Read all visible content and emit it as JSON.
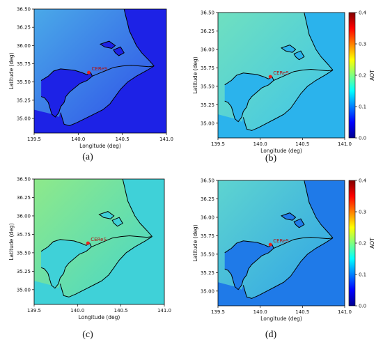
{
  "chart_data": [
    {
      "type": "heatmap",
      "panel": "(a)",
      "xlabel": "Longitude (deg)",
      "ylabel": "Latitude (deg)",
      "xlim": [
        139.5,
        141.0
      ],
      "ylim": [
        34.8,
        36.5
      ],
      "xticks": [
        "139.5",
        "140.0",
        "140.5",
        "141.0"
      ],
      "yticks": [
        "35.00",
        "35.25",
        "35.50",
        "35.75",
        "36.00",
        "36.25",
        "36.50"
      ],
      "annotation": "CEReS",
      "site": {
        "lon": 140.12,
        "lat": 35.63
      },
      "colorbar": false,
      "palette": {
        "sea": "#1d22e6",
        "land_low": "#2e4fe8",
        "land_high": "#4aa9e8"
      },
      "background_aot": 0.02
    },
    {
      "type": "heatmap",
      "panel": "(b)",
      "xlabel": "Longitude (deg)",
      "ylabel": "Latitude (deg)",
      "xlim": [
        139.5,
        141.0
      ],
      "ylim": [
        34.8,
        36.5
      ],
      "xticks": [
        "139.5",
        "140.0",
        "140.5",
        "141.0"
      ],
      "yticks": [
        "35.00",
        "35.25",
        "35.50",
        "35.75",
        "36.00",
        "36.25",
        "36.50"
      ],
      "annotation": "CEReS",
      "site": {
        "lon": 140.12,
        "lat": 35.63
      },
      "colorbar": true,
      "colorbar_label": "AOT",
      "colorbar_range": [
        0.0,
        0.4
      ],
      "colorbar_ticks": [
        "0.0",
        "0.1",
        "0.2",
        "0.3",
        "0.4"
      ],
      "palette": {
        "sea": "#2bb3ec",
        "land_low": "#3fc4e8",
        "land_high": "#6fe0c0"
      },
      "background_aot": 0.14
    },
    {
      "type": "heatmap",
      "panel": "(c)",
      "xlabel": "Longitude (deg)",
      "ylabel": "Latitude (deg)",
      "xlim": [
        139.5,
        141.0
      ],
      "ylim": [
        34.8,
        36.5
      ],
      "xticks": [
        "139.5",
        "140.0",
        "140.5",
        "141.0"
      ],
      "yticks": [
        "35.00",
        "35.25",
        "35.50",
        "35.75",
        "36.00",
        "36.25",
        "36.50"
      ],
      "annotation": "CEReS",
      "site": {
        "lon": 140.12,
        "lat": 35.63
      },
      "colorbar": false,
      "palette": {
        "sea": "#3fd1d8",
        "land_low": "#46d6c8",
        "land_high": "#8ee98a"
      },
      "background_aot": 0.17
    },
    {
      "type": "heatmap",
      "panel": "(d)",
      "xlabel": "Longitude (deg)",
      "ylabel": "Latitude (deg)",
      "xlim": [
        139.5,
        141.0
      ],
      "ylim": [
        34.8,
        36.5
      ],
      "xticks": [
        "139.5",
        "140.0",
        "140.5",
        "141.0"
      ],
      "yticks": [
        "35.00",
        "35.25",
        "35.50",
        "35.75",
        "36.00",
        "36.25",
        "36.50"
      ],
      "annotation": "CEReS",
      "site": {
        "lon": 140.12,
        "lat": 35.63
      },
      "colorbar": true,
      "colorbar_label": "AOT",
      "colorbar_range": [
        0.0,
        0.4
      ],
      "colorbar_ticks": [
        "0.0",
        "0.1",
        "0.2",
        "0.3",
        "0.4"
      ],
      "palette": {
        "sea": "#1f7ae8",
        "land_low": "#2fa3e6",
        "land_high": "#5ed4d0"
      },
      "background_aot": 0.09
    }
  ]
}
